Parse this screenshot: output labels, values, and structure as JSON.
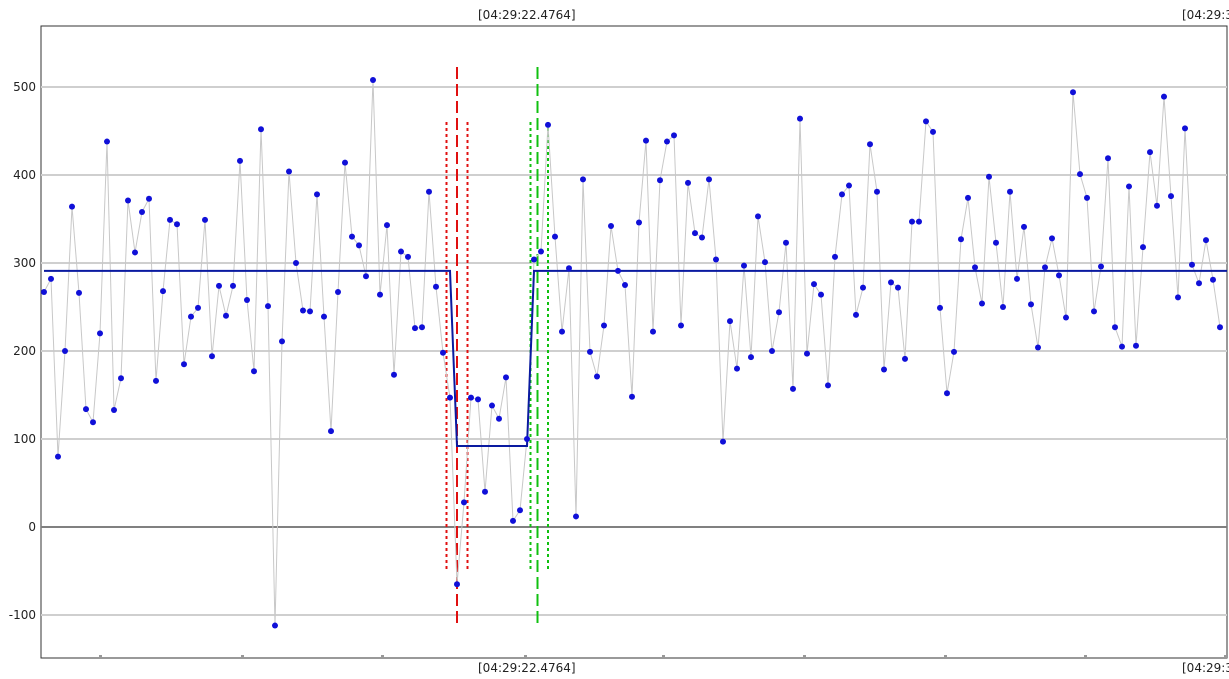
{
  "chart_data": {
    "type": "scatter",
    "title": "",
    "xlabel": "",
    "ylabel": "",
    "ylim": [
      -150,
      600
    ],
    "yticks": [
      -100,
      0,
      100,
      200,
      300,
      400,
      500
    ],
    "time_labels": {
      "top": [
        "[04:29:22.4764]",
        "[04:29:3"
      ],
      "bottom": [
        "[04:29:22.4764]",
        "[04:29:3"
      ]
    },
    "colors": {
      "points": "#1010d8",
      "connector": "#c8c8c8",
      "level": "#0a1aa0",
      "red_marker": "#e01010",
      "green_marker": "#10c010",
      "grid": "#cfcfcf",
      "zero_line": "#808080"
    },
    "grid": true,
    "series": [
      {
        "values": [
          267,
          282,
          80,
          200,
          364,
          266,
          134,
          119,
          220,
          438,
          133,
          169,
          371,
          312,
          358,
          373,
          166,
          268,
          349,
          344,
          185,
          239,
          249,
          349,
          194,
          274,
          240,
          274,
          416,
          258,
          177,
          452,
          251,
          -112,
          211,
          404,
          300,
          246,
          245,
          378,
          239,
          109,
          267,
          414,
          330,
          320,
          285,
          508,
          264,
          343,
          173,
          313,
          307,
          226,
          227,
          381,
          273,
          198,
          147,
          -65,
          28,
          147,
          145,
          40,
          138,
          123,
          170,
          7,
          19,
          100,
          304,
          313,
          457,
          330,
          222,
          294,
          12,
          395,
          199,
          171,
          229,
          342,
          291,
          275,
          148,
          346,
          439,
          222,
          394,
          438,
          445,
          229,
          391,
          334,
          329,
          395,
          304,
          97,
          234,
          180,
          297,
          193,
          353,
          301,
          200,
          244,
          323,
          157,
          464,
          197,
          276,
          264,
          161,
          307,
          378,
          388,
          241,
          272,
          435,
          381,
          179,
          278,
          272,
          191,
          347,
          347,
          461,
          449,
          249,
          152,
          199,
          327,
          374,
          295,
          254,
          398,
          323,
          250,
          381,
          282,
          341,
          253,
          204,
          295,
          328,
          286,
          238,
          494,
          401,
          374,
          245,
          296,
          419,
          227,
          205,
          387,
          206,
          318,
          426,
          365,
          489,
          376,
          261,
          453,
          298,
          277,
          326,
          281,
          227
        ]
      },
      {
        "name": "level",
        "segments": [
          [
            0,
            291
          ],
          [
            58,
            291
          ],
          [
            59,
            92
          ],
          [
            69,
            92
          ],
          [
            70,
            291
          ],
          [
            171,
            291
          ]
        ]
      }
    ],
    "markers": {
      "red_center": 59,
      "red_bounds": [
        57.5,
        60.5
      ],
      "green_center": 70.5,
      "green_bounds": [
        69.5,
        72
      ]
    }
  }
}
